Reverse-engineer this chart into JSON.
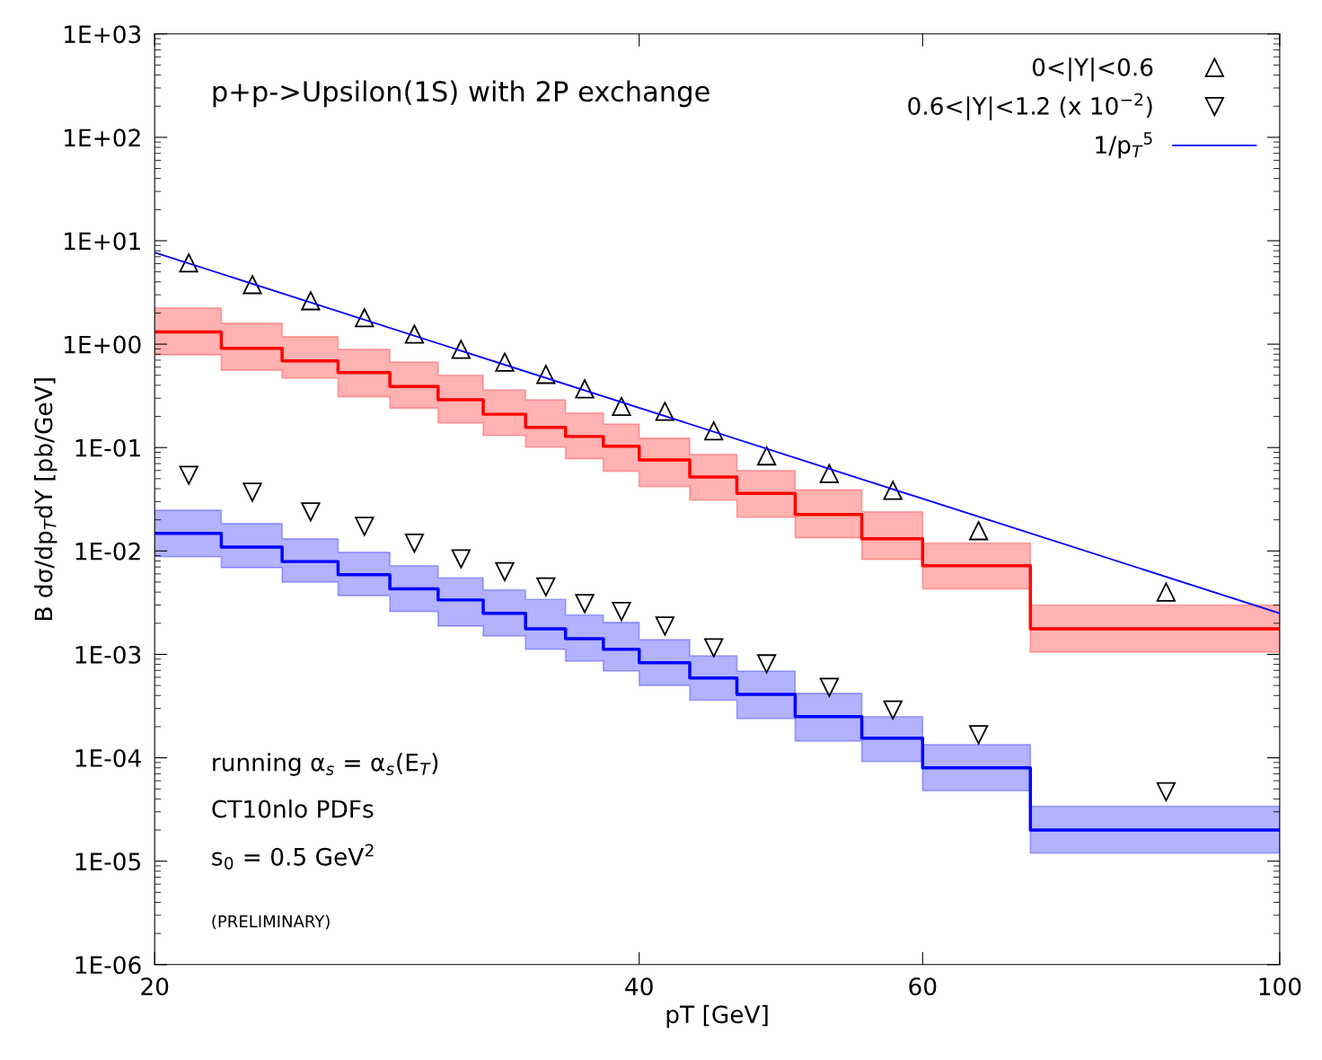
{
  "chart_data": {
    "type": "step",
    "title": "p+p->Upsilon(1S) with 2P exchange",
    "xlabel": "pT [GeV]",
    "ylabel": "B dσ/dp$_{T}$dY [pb/GeV]",
    "log": "xy",
    "xlim": [
      20,
      100
    ],
    "xticks": [
      20,
      40,
      60,
      100
    ],
    "ylim": [
      1e-06,
      1000
    ],
    "yticks": [
      {
        "value": 1e-06,
        "label": "1E-06"
      },
      {
        "value": 1e-05,
        "label": "1E-05"
      },
      {
        "value": 0.0001,
        "label": "1E-04"
      },
      {
        "value": 0.001,
        "label": "1E-03"
      },
      {
        "value": 0.01,
        "label": "1E-02"
      },
      {
        "value": 0.1,
        "label": "1E-01"
      },
      {
        "value": 1,
        "label": "1E+00"
      },
      {
        "value": 10,
        "label": "1E+01"
      },
      {
        "value": 100,
        "label": "1E+02"
      },
      {
        "value": 1000,
        "label": "1E+03"
      }
    ],
    "grid": false,
    "legend": "top right",
    "annotations": [
      "running α$_{s}$ = α$_{s}$(E$_{T}$)",
      "CT10nlo PDFs",
      "s$_{0}$ = 0.5 GeV$^{2}$",
      "(PRELIMINARY)"
    ],
    "series": [
      {
        "color": "#ff0000",
        "x": [
          20,
          22,
          24,
          26,
          28,
          30,
          32,
          34,
          36,
          38,
          40,
          43,
          46,
          50,
          55,
          60,
          70,
          100
        ],
        "values": [
          1.31,
          0.91,
          0.69,
          0.53,
          0.39,
          0.29,
          0.21,
          0.157,
          0.128,
          0.103,
          0.076,
          0.052,
          0.036,
          0.0225,
          0.0131,
          0.0072,
          0.00177,
          0.00177
        ],
        "upper": [
          2.24,
          1.59,
          1.18,
          0.89,
          0.67,
          0.5,
          0.36,
          0.29,
          0.216,
          0.169,
          0.123,
          0.086,
          0.06,
          0.039,
          0.0239,
          0.0119,
          0.003,
          0.003
        ],
        "lower": [
          0.79,
          0.56,
          0.47,
          0.31,
          0.24,
          0.173,
          0.131,
          0.101,
          0.078,
          0.059,
          0.042,
          0.031,
          0.0212,
          0.0134,
          0.0083,
          0.0043,
          0.00105,
          0.00105
        ]
      },
      {
        "color": "#0000ff",
        "x": [
          20,
          22,
          24,
          26,
          28,
          30,
          32,
          34,
          36,
          38,
          40,
          43,
          46,
          50,
          55,
          60,
          70,
          100
        ],
        "values": [
          0.0148,
          0.0109,
          0.0079,
          0.0059,
          0.0043,
          0.00336,
          0.00249,
          0.00177,
          0.00142,
          0.00112,
          0.00083,
          0.00059,
          0.00041,
          0.00025,
          0.000155,
          8e-05,
          2e-05,
          2e-05
        ],
        "upper": [
          0.0248,
          0.0184,
          0.0131,
          0.0097,
          0.0072,
          0.0055,
          0.0042,
          0.0034,
          0.0024,
          0.00204,
          0.00139,
          0.00097,
          0.00069,
          0.00042,
          0.00025,
          0.000134,
          3.4e-05,
          3.4e-05
        ],
        "lower": [
          0.0088,
          0.0069,
          0.005,
          0.0037,
          0.0026,
          0.00188,
          0.00151,
          0.00112,
          0.00086,
          0.00069,
          0.0005,
          0.00036,
          0.00024,
          0.000145,
          9.2e-05,
          4.8e-05,
          1.2e-05,
          1.2e-05
        ]
      },
      {
        "type": "scatter",
        "name": "0<|Y|<0.6",
        "marker": "triangle",
        "color": "#000000",
        "x": [
          21,
          23,
          25,
          27,
          29,
          31,
          33,
          35,
          37,
          39,
          41.5,
          44.5,
          48,
          52.5,
          57.5,
          65,
          85
        ],
        "values": [
          6.1,
          3.77,
          2.63,
          1.8,
          1.25,
          0.89,
          0.67,
          0.51,
          0.37,
          0.25,
          0.224,
          0.145,
          0.083,
          0.056,
          0.0386,
          0.0157,
          0.004
        ]
      },
      {
        "type": "scatter",
        "name": "0.6<|Y|<1.2 (x 10$^{−2}$)",
        "marker": "triangle_down",
        "color": "#000000",
        "x": [
          21,
          23,
          25,
          27,
          29,
          31,
          33,
          35,
          37,
          39,
          41.5,
          44.5,
          48,
          52.5,
          57.5,
          65,
          85
        ],
        "values": [
          0.054,
          0.037,
          0.0239,
          0.0173,
          0.0119,
          0.0084,
          0.0063,
          0.0045,
          0.0031,
          0.0026,
          0.00188,
          0.00116,
          0.00081,
          0.00048,
          0.00029,
          0.000167,
          4.7e-05
        ]
      },
      {
        "type": "line",
        "name": "1/p$_{T}$$^{5}$",
        "color": "#0000ff",
        "line_style": "solid",
        "x": [
          20,
          100
        ],
        "values": [
          7.7,
          0.0025
        ]
      }
    ]
  }
}
